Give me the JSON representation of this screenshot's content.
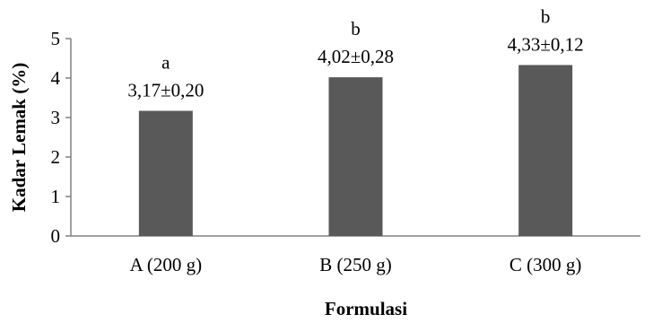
{
  "chart_data": {
    "type": "bar",
    "title": "",
    "xlabel": "Formulasi",
    "ylabel": "Kadar Lemak (%)",
    "categories": [
      "A (200 g)",
      "B (250 g)",
      "C (300 g)"
    ],
    "values": [
      3.17,
      4.02,
      4.33
    ],
    "letters": [
      "a",
      "b",
      "b"
    ],
    "value_labels": [
      "3,17±0,20",
      "4,02±0,28",
      "4,33±0,12"
    ],
    "ylim": [
      0,
      5
    ],
    "yticks": [
      0,
      1,
      2,
      3,
      4,
      5
    ],
    "ytick_labels": [
      "0",
      "1",
      "2",
      "3",
      "4",
      "5"
    ],
    "grid": false,
    "legend": "none",
    "colors": {
      "bar": "#595959",
      "axis": "#808080",
      "text": "#000000"
    }
  }
}
